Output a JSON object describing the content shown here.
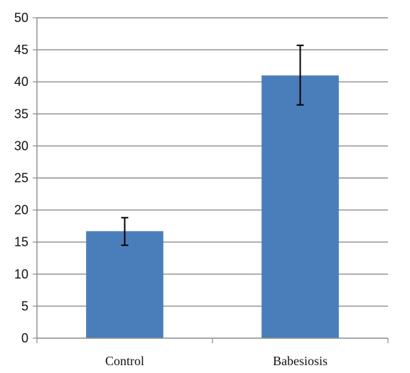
{
  "chart_data": {
    "type": "bar",
    "title": "",
    "xlabel": "",
    "ylabel": "",
    "categories": [
      "Control",
      "Babesiosis"
    ],
    "values": [
      16.7,
      41.0
    ],
    "error_low": [
      14.5,
      36.4
    ],
    "error_high": [
      18.8,
      45.7
    ],
    "ylim": [
      0,
      50
    ],
    "yticks": [
      0,
      5,
      10,
      15,
      20,
      25,
      30,
      35,
      40,
      45,
      50
    ],
    "grid": true,
    "legend": false,
    "colors": {
      "bar": "#4a7ebb",
      "grid": "#8c8c8c",
      "error_bar": "#000000",
      "axis": "#8c8c8c"
    }
  }
}
